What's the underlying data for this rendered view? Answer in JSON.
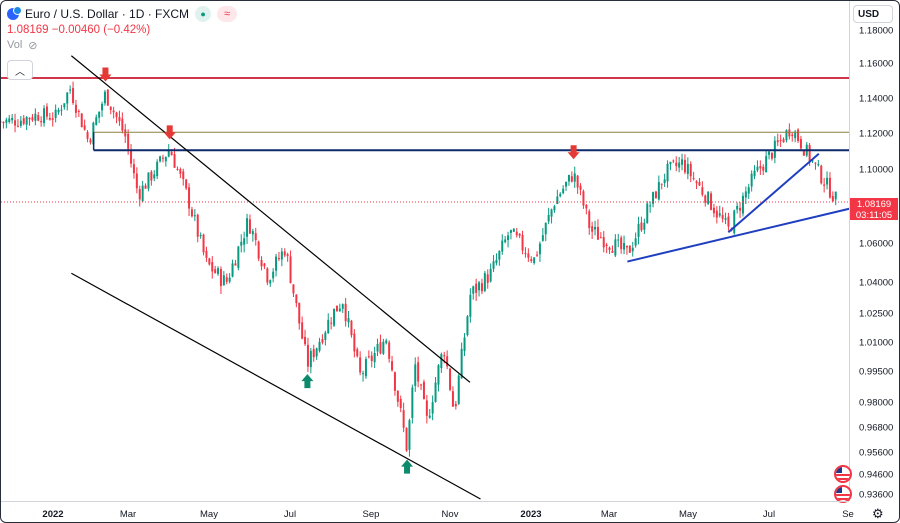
{
  "header": {
    "title": "Euro / U.S. Dollar · 1D · FXCM",
    "price_line": "1.08169 −0.00460 (−0.42%)",
    "vol_label": "Vol",
    "currency": "USD",
    "last_price": "1.08169",
    "countdown": "03:11:05"
  },
  "colors": {
    "up": "#089981",
    "down": "#f23645",
    "resistance": "#d0354c",
    "channel": "#000000",
    "trend": "#1f3fc0",
    "zone_top": "#8a8040",
    "zone_bottom": "#0d2a6e"
  },
  "icons": [
    "symbol-icon",
    "market-status-icon",
    "wave-icon",
    "eye-slash-icon",
    "chevron-up-icon",
    "us-flag-icon",
    "settings-gear-icon"
  ],
  "chart_data": {
    "type": "candlestick",
    "symbol": "EURUSD",
    "timeframe": "1D",
    "y_ticks": [
      "1.18000",
      "1.16000",
      "1.14000",
      "1.12000",
      "1.10000",
      "1.08000",
      "1.06000",
      "1.04000",
      "1.02500",
      "1.01000",
      "0.99500",
      "0.98000",
      "0.96800",
      "0.95600",
      "0.94600",
      "0.93600"
    ],
    "x_ticks": [
      {
        "label": "2022",
        "major": true
      },
      {
        "label": "Mar",
        "major": false
      },
      {
        "label": "May",
        "major": false
      },
      {
        "label": "Jul",
        "major": false
      },
      {
        "label": "Sep",
        "major": false
      },
      {
        "label": "Nov",
        "major": false
      },
      {
        "label": "2023",
        "major": true
      },
      {
        "label": "Mar",
        "major": false
      },
      {
        "label": "May",
        "major": false
      },
      {
        "label": "Jul",
        "major": false
      },
      {
        "label": "Se",
        "major": false
      }
    ],
    "close_path": [
      [
        "2021-11-22",
        1.127
      ],
      [
        "2021-12-06",
        1.128
      ],
      [
        "2021-12-20",
        1.131
      ],
      [
        "2022-01-03",
        1.13
      ],
      [
        "2022-01-14",
        1.146
      ],
      [
        "2022-01-28",
        1.116
      ],
      [
        "2022-02-10",
        1.143
      ],
      [
        "2022-02-25",
        1.119
      ],
      [
        "2022-03-07",
        1.086
      ],
      [
        "2022-03-31",
        1.112
      ],
      [
        "2022-04-12",
        1.088
      ],
      [
        "2022-04-28",
        1.05
      ],
      [
        "2022-05-13",
        1.04
      ],
      [
        "2022-05-30",
        1.072
      ],
      [
        "2022-06-14",
        1.043
      ],
      [
        "2022-06-27",
        1.058
      ],
      [
        "2022-07-14",
        0.999
      ],
      [
        "2022-08-02",
        1.025
      ],
      [
        "2022-08-10",
        1.032
      ],
      [
        "2022-08-23",
        0.993
      ],
      [
        "2022-09-12",
        1.013
      ],
      [
        "2022-09-28",
        0.958
      ],
      [
        "2022-10-04",
        0.999
      ],
      [
        "2022-10-13",
        0.971
      ],
      [
        "2022-10-26",
        1.008
      ],
      [
        "2022-11-03",
        0.975
      ],
      [
        "2022-11-15",
        1.034
      ],
      [
        "2022-12-01",
        1.045
      ],
      [
        "2022-12-15",
        1.066
      ],
      [
        "2023-01-03",
        1.052
      ],
      [
        "2023-01-19",
        1.083
      ],
      [
        "2023-02-02",
        1.098
      ],
      [
        "2023-02-15",
        1.067
      ],
      [
        "2023-03-15",
        1.055
      ],
      [
        "2023-04-14",
        1.099
      ],
      [
        "2023-04-26",
        1.104
      ],
      [
        "2023-05-31",
        1.067
      ],
      [
        "2023-06-20",
        1.097
      ],
      [
        "2023-07-18",
        1.124
      ],
      [
        "2023-08-11",
        1.095
      ],
      [
        "2023-08-23",
        1.081
      ]
    ],
    "annotations": [
      {
        "type": "horizontal_line",
        "label": "resistance",
        "y": 1.152
      },
      {
        "type": "zone_top_line",
        "from": "2022-02-01",
        "to": "2023-09-06",
        "y": 1.121
      },
      {
        "type": "zone_bottom_line",
        "from": "2022-02-01",
        "to": "2023-09-06",
        "y": 1.111
      },
      {
        "type": "channel_upper",
        "from": [
          "2022-01-15",
          1.165
        ],
        "to": [
          "2022-11-15",
          0.99
        ]
      },
      {
        "type": "channel_lower",
        "from": [
          "2022-01-15",
          1.045
        ],
        "to": [
          "2022-11-23",
          0.934
        ]
      },
      {
        "type": "trendline",
        "from": [
          "2023-03-15",
          1.051
        ],
        "to": [
          "2023-09-06",
          1.079
        ]
      },
      {
        "type": "trendline",
        "from": [
          "2023-05-31",
          1.066
        ],
        "to": [
          "2023-08-08",
          1.109
        ]
      },
      {
        "type": "arrow_down",
        "at": [
          "2022-02-10",
          1.15
        ]
      },
      {
        "type": "arrow_down",
        "at": [
          "2022-03-31",
          1.117
        ]
      },
      {
        "type": "arrow_down",
        "at": [
          "2023-02-02",
          1.106
        ]
      },
      {
        "type": "arrow_up",
        "at": [
          "2022-07-14",
          0.994
        ]
      },
      {
        "type": "arrow_up",
        "at": [
          "2022-09-28",
          0.953
        ]
      }
    ]
  }
}
